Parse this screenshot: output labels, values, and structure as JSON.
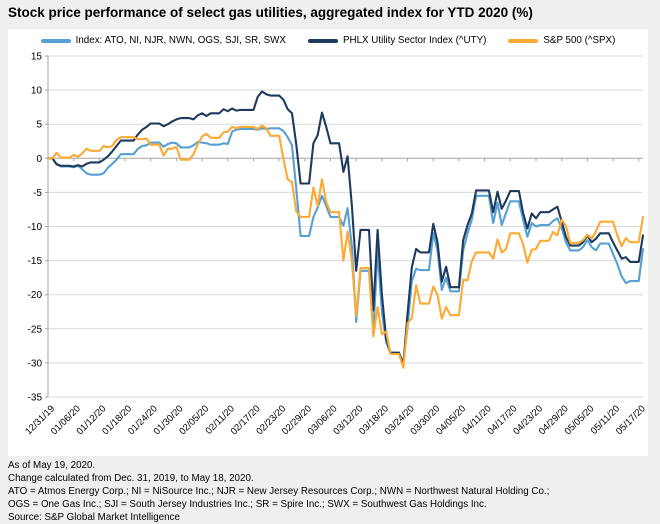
{
  "title": "Stock price performance of select gas utilities, aggregated index for YTD 2020 (%)",
  "legend": [
    {
      "label": "Index: ATO, NI, NJR, NWN, OGS, SJI, SR, SWX",
      "color": "#56a0d3"
    },
    {
      "label": "PHLX Utility Sector Index (^UTY)",
      "color": "#1f3a5f"
    },
    {
      "label": "S&P 500 (^SPX)",
      "color": "#fbaa33"
    }
  ],
  "footnotes": [
    "As of May 19, 2020.",
    "Change calculated from Dec. 31, 2019, to May 18, 2020.",
    "ATO = Atmos Energy Corp.; NI = NiSource Inc.; NJR = New Jersey Resources Corp.; NWN = Northwest Natural Holding Co.;",
    "OGS = One Gas Inc.; SJI = South Jersey Industries Inc.; SR = Spire Inc.; SWX = Southwest Gas Holdings Inc.",
    "Source: S&P Global Market Intelligence"
  ],
  "colors": {
    "background": "#efefed",
    "panel": "#ffffff",
    "grid": "#d9d9d9",
    "axis": "#a6a6a6",
    "text": "#000000"
  },
  "chart_data": {
    "type": "line",
    "title": "Stock price performance of select gas utilities, aggregated index for YTD 2020 (%)",
    "ylabel": "",
    "xlabel": "",
    "ylim": [
      -35,
      15
    ],
    "y_ticks": [
      15,
      10,
      5,
      0,
      -5,
      -10,
      -15,
      -20,
      -25,
      -30,
      -35
    ],
    "x_start": "12/31/19",
    "x_end": "05/18/20",
    "x_note": "Daily calendar axis; weekend/holiday values carry forward the previous close.",
    "x_tick_every_days": 6,
    "x_tick_labels": [
      "12/31/19",
      "01/06/20",
      "01/12/20",
      "01/18/20",
      "01/24/20",
      "01/30/20",
      "02/05/20",
      "02/11/20",
      "02/17/20",
      "02/23/20",
      "02/29/20",
      "03/06/20",
      "03/12/20",
      "03/18/20",
      "03/24/20",
      "03/30/20",
      "04/05/20",
      "04/11/20",
      "04/17/20",
      "04/23/20",
      "04/29/20",
      "05/05/20",
      "05/11/20",
      "05/17/20"
    ],
    "grid": "horizontal",
    "legend_position": "top",
    "series_names": [
      "Index: ATO, NI, NJR, NWN, OGS, SJI, SR, SWX",
      "PHLX Utility Sector Index (^UTY)",
      "S&P 500 (^SPX)"
    ],
    "points_format": [
      "date",
      "gas_index_pct",
      "uty_pct",
      "spx_pct"
    ],
    "points": [
      [
        "12/31/19",
        0,
        0,
        0
      ],
      [
        "01/02/20",
        -0.8,
        -0.9,
        0.8
      ],
      [
        "01/03/20",
        -1.2,
        -1.1,
        0.1
      ],
      [
        "01/06/20",
        -1.3,
        -1.2,
        0.5
      ],
      [
        "01/07/20",
        -1.1,
        -1.0,
        0.2
      ],
      [
        "01/08/20",
        -1.6,
        -1.2,
        0.7
      ],
      [
        "01/09/20",
        -2.2,
        -0.8,
        1.4
      ],
      [
        "01/10/20",
        -2.4,
        -0.6,
        1.1
      ],
      [
        "01/13/20",
        -2.2,
        -0.2,
        1.8
      ],
      [
        "01/14/20",
        -1.4,
        0.3,
        1.6
      ],
      [
        "01/15/20",
        -0.8,
        1.0,
        1.8
      ],
      [
        "01/16/20",
        -0.2,
        1.8,
        2.7
      ],
      [
        "01/17/20",
        0.6,
        2.6,
        3.1
      ],
      [
        "01/21/20",
        1.4,
        3.5,
        2.8
      ],
      [
        "01/22/20",
        1.8,
        4.2,
        2.8
      ],
      [
        "01/23/20",
        1.9,
        4.6,
        2.9
      ],
      [
        "01/24/20",
        2.3,
        5.1,
        2.0
      ],
      [
        "01/27/20",
        1.7,
        4.7,
        0.4
      ],
      [
        "01/28/20",
        2.1,
        5.0,
        1.4
      ],
      [
        "01/29/20",
        2.3,
        5.4,
        1.4
      ],
      [
        "01/30/20",
        2.2,
        5.7,
        1.7
      ],
      [
        "01/31/20",
        1.6,
        5.9,
        -0.2
      ],
      [
        "02/03/20",
        1.9,
        5.7,
        0.6
      ],
      [
        "02/04/20",
        2.4,
        6.3,
        2.1
      ],
      [
        "02/05/20",
        2.3,
        6.6,
        3.2
      ],
      [
        "02/06/20",
        2.2,
        6.2,
        3.6
      ],
      [
        "02/07/20",
        2.0,
        6.6,
        3.0
      ],
      [
        "02/10/20",
        2.2,
        7.2,
        3.8
      ],
      [
        "02/11/20",
        2.1,
        6.9,
        3.9
      ],
      [
        "02/12/20",
        3.9,
        7.3,
        4.6
      ],
      [
        "02/13/20",
        4.2,
        7.0,
        4.4
      ],
      [
        "02/14/20",
        4.3,
        7.1,
        4.6
      ],
      [
        "02/18/20",
        4.2,
        9.0,
        4.3
      ],
      [
        "02/19/20",
        4.4,
        9.8,
        4.8
      ],
      [
        "02/20/20",
        4.3,
        9.4,
        4.4
      ],
      [
        "02/21/20",
        4.4,
        9.2,
        3.3
      ],
      [
        "02/24/20",
        4.0,
        8.6,
        -0.1
      ],
      [
        "02/25/20",
        3.1,
        7.2,
        -3.1
      ],
      [
        "02/26/20",
        1.9,
        6.6,
        -3.5
      ],
      [
        "02/27/20",
        -4.5,
        2.0,
        -7.8
      ],
      [
        "02/28/20",
        -11.4,
        -3.7,
        -8.6
      ],
      [
        "03/02/20",
        -8.6,
        2.2,
        -4.3
      ],
      [
        "03/03/20",
        -7.2,
        3.4,
        -7.0
      ],
      [
        "03/04/20",
        -5.5,
        6.7,
        -3.1
      ],
      [
        "03/05/20",
        -7.0,
        4.6,
        -6.4
      ],
      [
        "03/06/20",
        -8.6,
        2.2,
        -7.9
      ],
      [
        "03/09/20",
        -9.9,
        -2.0,
        -15.0
      ],
      [
        "03/10/20",
        -7.3,
        0.3,
        -10.7
      ],
      [
        "03/11/20",
        -13.0,
        -7.0,
        -15.1
      ],
      [
        "03/12/20",
        -24.0,
        -16.5,
        -23.2
      ],
      [
        "03/13/20",
        -16.5,
        -10.5,
        -16.1
      ],
      [
        "03/16/20",
        -25.5,
        -22.3,
        -26.1
      ],
      [
        "03/17/20",
        -13.5,
        -10.5,
        -21.8
      ],
      [
        "03/18/20",
        -22.5,
        -20.0,
        -25.8
      ],
      [
        "03/19/20",
        -27.0,
        -26.5,
        -25.4
      ],
      [
        "03/20/20",
        -28.5,
        -28.5,
        -28.7
      ],
      [
        "03/23/20",
        -30.0,
        -30.3,
        -30.7
      ],
      [
        "03/24/20",
        -24.7,
        -22.7,
        -24.2
      ],
      [
        "03/25/20",
        -18.0,
        -16.0,
        -23.4
      ],
      [
        "03/26/20",
        -16.2,
        -13.3,
        -18.6
      ],
      [
        "03/27/20",
        -16.4,
        -13.8,
        -21.3
      ],
      [
        "03/30/20",
        -11.0,
        -9.6,
        -18.8
      ],
      [
        "03/31/20",
        -13.5,
        -12.3,
        -20.0
      ],
      [
        "04/01/20",
        -19.3,
        -18.1,
        -23.5
      ],
      [
        "04/02/20",
        -17.5,
        -15.9,
        -21.8
      ],
      [
        "04/03/20",
        -19.5,
        -18.9,
        -23.0
      ],
      [
        "04/06/20",
        -13.5,
        -12.0,
        -17.8
      ],
      [
        "04/07/20",
        -11.0,
        -9.8,
        -17.9
      ],
      [
        "04/08/20",
        -9.0,
        -8.1,
        -15.1
      ],
      [
        "04/09/20",
        -5.5,
        -4.7,
        -13.8
      ],
      [
        "04/13/20",
        -9.5,
        -7.9,
        -14.7
      ],
      [
        "04/14/20",
        -6.5,
        -4.9,
        -11.9
      ],
      [
        "04/15/20",
        -9.8,
        -7.4,
        -13.8
      ],
      [
        "04/16/20",
        -8.0,
        -6.2,
        -13.3
      ],
      [
        "04/17/20",
        -6.3,
        -4.8,
        -11.0
      ],
      [
        "04/20/20",
        -9.0,
        -8.0,
        -12.6
      ],
      [
        "04/21/20",
        -11.5,
        -10.3,
        -15.3
      ],
      [
        "04/22/20",
        -9.5,
        -8.1,
        -13.4
      ],
      [
        "04/23/20",
        -10.0,
        -8.8,
        -13.3
      ],
      [
        "04/24/20",
        -9.8,
        -7.9,
        -12.1
      ],
      [
        "04/27/20",
        -9.2,
        -7.5,
        -10.8
      ],
      [
        "04/28/20",
        -8.8,
        -7.1,
        -11.3
      ],
      [
        "04/29/20",
        -10.3,
        -9.3,
        -9.0
      ],
      [
        "04/30/20",
        -12.3,
        -11.5,
        -9.9
      ],
      [
        "05/01/20",
        -13.5,
        -12.8,
        -12.4
      ],
      [
        "05/04/20",
        -13.0,
        -12.3,
        -12.0
      ],
      [
        "05/05/20",
        -12.0,
        -11.3,
        -11.2
      ],
      [
        "05/06/20",
        -13.0,
        -12.3,
        -11.8
      ],
      [
        "05/07/20",
        -13.5,
        -11.8,
        -10.7
      ],
      [
        "05/08/20",
        -12.5,
        -11.0,
        -9.3
      ],
      [
        "05/11/20",
        -14.0,
        -12.3,
        -9.3
      ],
      [
        "05/12/20",
        -15.5,
        -13.5,
        -11.3
      ],
      [
        "05/13/20",
        -17.3,
        -14.7,
        -12.9
      ],
      [
        "05/14/20",
        -18.3,
        -14.5,
        -11.7
      ],
      [
        "05/15/20",
        -18.0,
        -15.2,
        -12.3
      ],
      [
        "05/18/20",
        -13.3,
        -11.3,
        -8.6
      ]
    ]
  }
}
